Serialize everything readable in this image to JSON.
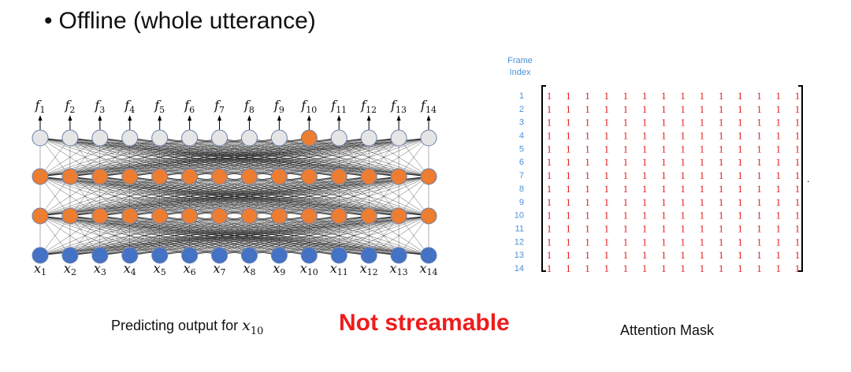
{
  "slide": {
    "bullet": "•",
    "title": "Offline (whole utterance)"
  },
  "network": {
    "n_frames": 14,
    "output_labels": [
      "f1",
      "f2",
      "f3",
      "f4",
      "f5",
      "f6",
      "f7",
      "f8",
      "f9",
      "f10",
      "f11",
      "f12",
      "f13",
      "f14"
    ],
    "input_labels": [
      "x1",
      "x2",
      "x3",
      "x4",
      "x5",
      "x6",
      "x7",
      "x8",
      "x9",
      "x10",
      "x11",
      "x12",
      "x13",
      "x14"
    ],
    "highlighted_output_index": 10,
    "colors": {
      "input_node": "#4472c4",
      "hidden_node": "#ed7d31",
      "output_node": "#e5e5e5",
      "output_highlight": "#ed7d31",
      "node_stroke": "#6a7fb0",
      "edge": "#000000"
    }
  },
  "captions": {
    "predicting_prefix": "Predicting output for ",
    "predicting_var": "x",
    "predicting_sub": "10",
    "not_streamable": "Not streamable",
    "attention_mask": "Attention Mask"
  },
  "mask": {
    "header_line1": "Frame",
    "header_line2": "Index",
    "row_indices": [
      "1",
      "2",
      "3",
      "4",
      "5",
      "6",
      "7",
      "8",
      "9",
      "10",
      "11",
      "12",
      "13",
      "14"
    ],
    "values": [
      [
        1,
        1,
        1,
        1,
        1,
        1,
        1,
        1,
        1,
        1,
        1,
        1,
        1,
        1
      ],
      [
        1,
        1,
        1,
        1,
        1,
        1,
        1,
        1,
        1,
        1,
        1,
        1,
        1,
        1
      ],
      [
        1,
        1,
        1,
        1,
        1,
        1,
        1,
        1,
        1,
        1,
        1,
        1,
        1,
        1
      ],
      [
        1,
        1,
        1,
        1,
        1,
        1,
        1,
        1,
        1,
        1,
        1,
        1,
        1,
        1
      ],
      [
        1,
        1,
        1,
        1,
        1,
        1,
        1,
        1,
        1,
        1,
        1,
        1,
        1,
        1
      ],
      [
        1,
        1,
        1,
        1,
        1,
        1,
        1,
        1,
        1,
        1,
        1,
        1,
        1,
        1
      ],
      [
        1,
        1,
        1,
        1,
        1,
        1,
        1,
        1,
        1,
        1,
        1,
        1,
        1,
        1
      ],
      [
        1,
        1,
        1,
        1,
        1,
        1,
        1,
        1,
        1,
        1,
        1,
        1,
        1,
        1
      ],
      [
        1,
        1,
        1,
        1,
        1,
        1,
        1,
        1,
        1,
        1,
        1,
        1,
        1,
        1
      ],
      [
        1,
        1,
        1,
        1,
        1,
        1,
        1,
        1,
        1,
        1,
        1,
        1,
        1,
        1
      ],
      [
        1,
        1,
        1,
        1,
        1,
        1,
        1,
        1,
        1,
        1,
        1,
        1,
        1,
        1
      ],
      [
        1,
        1,
        1,
        1,
        1,
        1,
        1,
        1,
        1,
        1,
        1,
        1,
        1,
        1
      ],
      [
        1,
        1,
        1,
        1,
        1,
        1,
        1,
        1,
        1,
        1,
        1,
        1,
        1,
        1
      ],
      [
        1,
        1,
        1,
        1,
        1,
        1,
        1,
        1,
        1,
        1,
        1,
        1,
        1,
        1
      ]
    ],
    "trailing_mark": ".",
    "colors": {
      "value": "#e31a1c",
      "index": "#4a90d9",
      "bracket": "#000000"
    }
  }
}
